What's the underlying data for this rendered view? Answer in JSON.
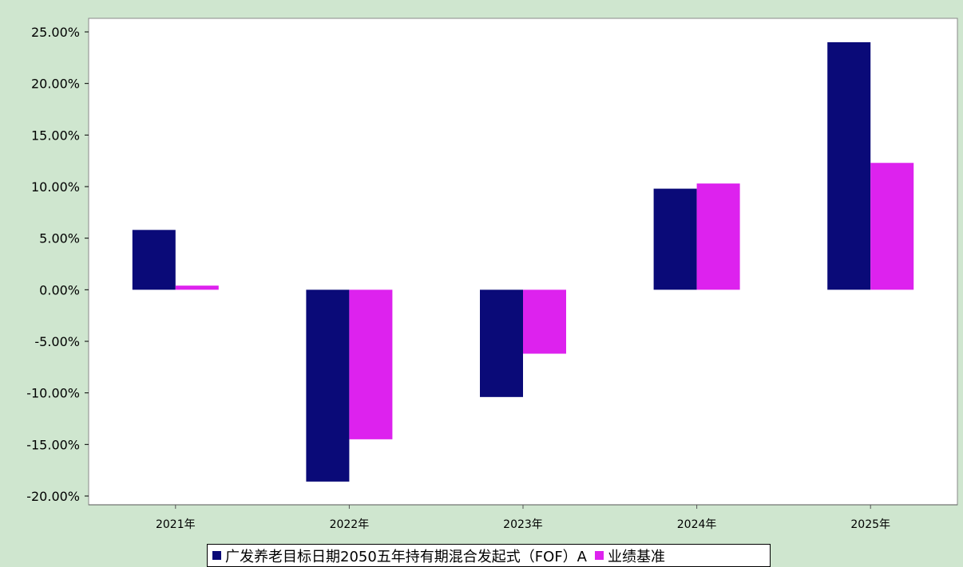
{
  "chart_data": {
    "type": "bar",
    "categories": [
      "2021年",
      "2022年",
      "2023年",
      "2024年",
      "2025年"
    ],
    "series": [
      {
        "name": "广发养老目标日期2050五年持有期混合发起式（FOF）A",
        "color": "#0a0a78",
        "values": [
          5.8,
          -18.6,
          -10.4,
          9.8,
          24.0
        ]
      },
      {
        "name": "业绩基准",
        "color": "#dd22ee",
        "values": [
          0.4,
          -14.5,
          -6.2,
          10.3,
          12.3
        ]
      }
    ],
    "yticks": [
      "25.00%",
      "20.00%",
      "15.00%",
      "10.00%",
      "5.00%",
      "0.00%",
      "-5.00%",
      "-10.00%",
      "-15.00%",
      "-20.00%"
    ],
    "ylim": [
      -20,
      25
    ],
    "legend_position": "bottom",
    "grid": false
  }
}
